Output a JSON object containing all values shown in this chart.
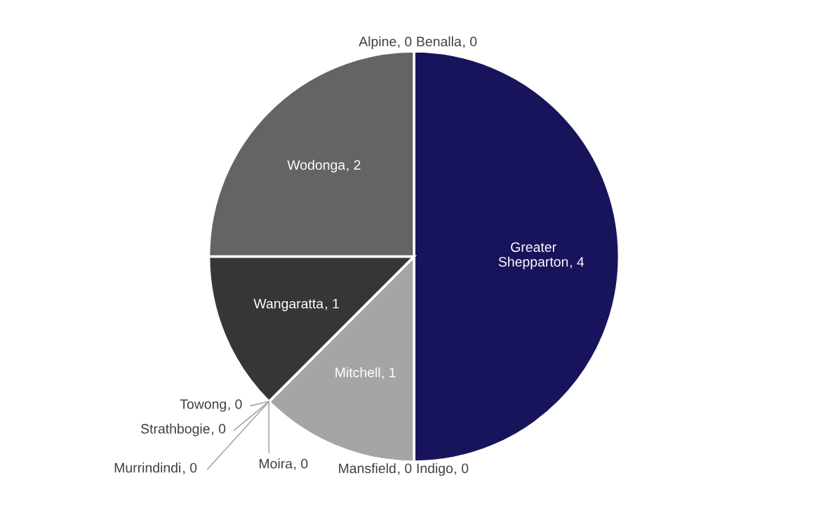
{
  "chart_data": {
    "type": "pie",
    "categories": [
      "Alpine",
      "Benalla",
      "Greater Shepparton",
      "Indigo",
      "Mansfield",
      "Mitchell",
      "Moira",
      "Murrindindi",
      "Strathbogie",
      "Towong",
      "Wangaratta",
      "Wodonga"
    ],
    "values": [
      0,
      0,
      4,
      0,
      0,
      1,
      0,
      0,
      0,
      0,
      1,
      2
    ],
    "colors": [
      "#a6a6a6",
      "#a6a6a6",
      "#18145b",
      "#a6a6a6",
      "#a6a6a6",
      "#a5a5a5",
      "#a6a6a6",
      "#a6a6a6",
      "#a6a6a6",
      "#a6a6a6",
      "#363636",
      "#646464"
    ],
    "value_labels": [
      ", 0",
      ", 0",
      ", 4",
      ", 0",
      ", 0",
      ", 1",
      ", 0",
      ", 0",
      ", 0",
      ", 0",
      ", 1",
      ", 2"
    ]
  }
}
